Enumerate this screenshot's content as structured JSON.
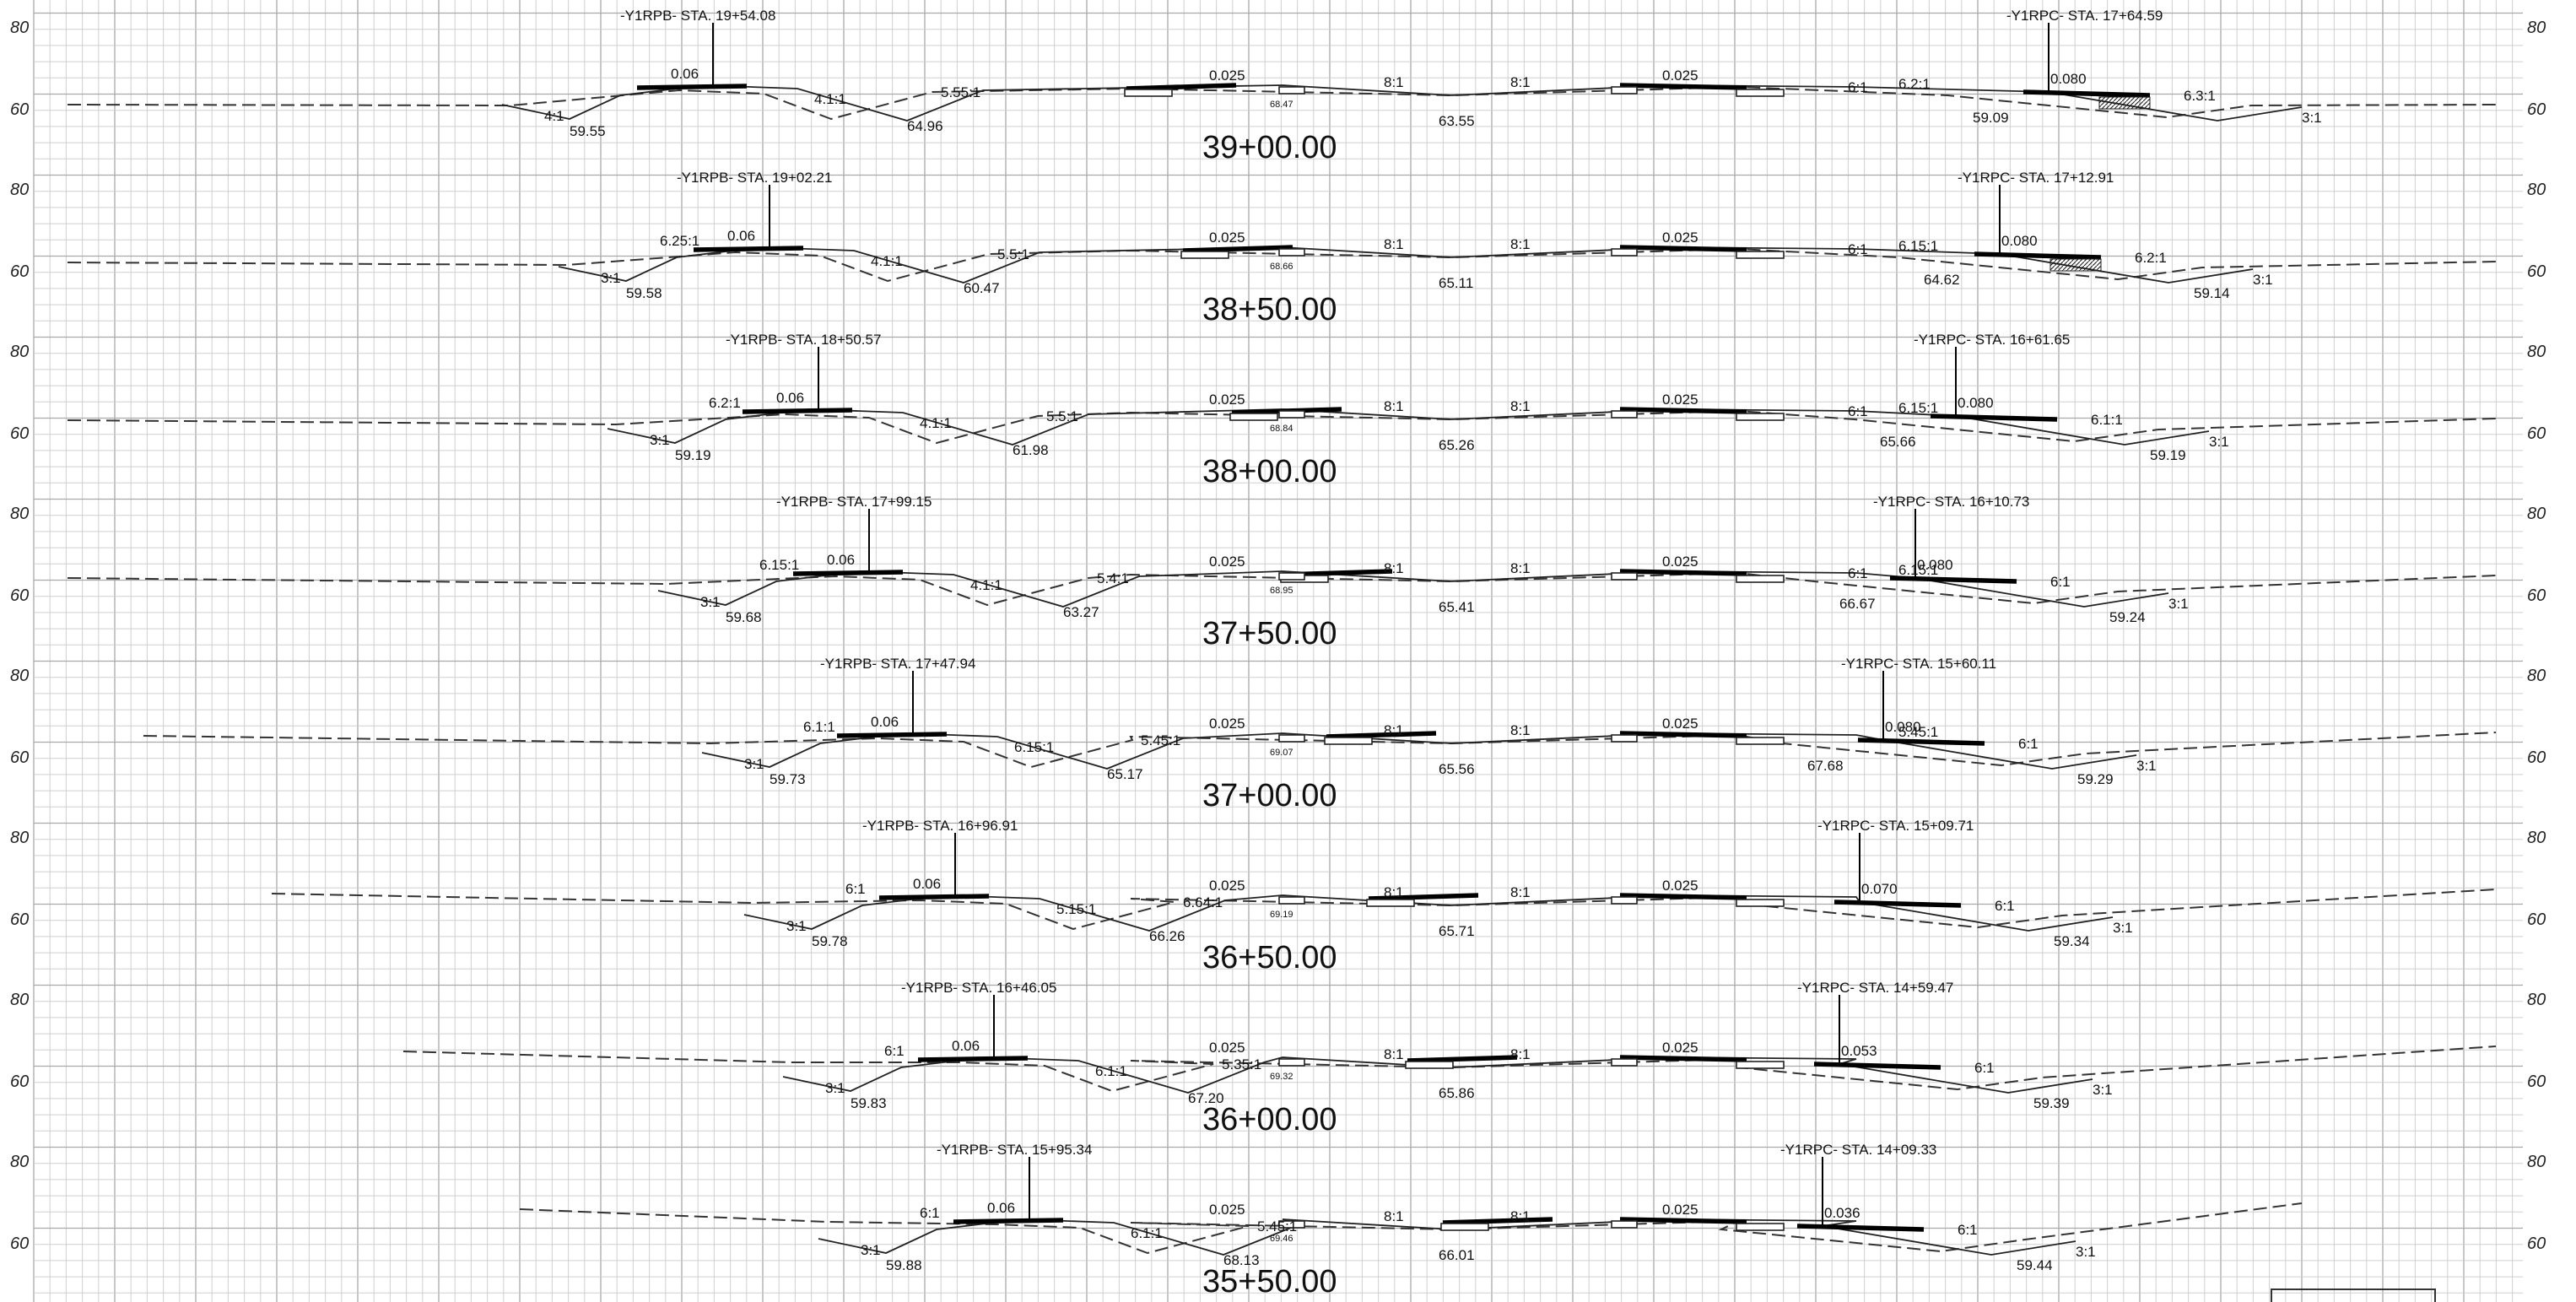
{
  "axis": {
    "upper": "80",
    "lower": "60"
  },
  "sections": [
    {
      "station": "39+00.00",
      "left_tie": "-Y1RPB- STA. 19+54.08",
      "right_tie": "-Y1RPC- STA. 17+64.59",
      "left_slope": "0.06",
      "center_slope": "0.025",
      "center_slope_right": "0.025",
      "right_slope": "0.080",
      "center_elev": "68.47",
      "elev_lo1": "59.55",
      "elev_lo2": "64.96",
      "elev_lo3": "63.55",
      "elev_lo4": "59.09",
      "r_outer": "4:1",
      "r_ditch_l": "4.1:1",
      "r_fill_l": "5.55:1",
      "r_c1": "8:1",
      "r_c2": "8:1",
      "r_fill_r": "6:1",
      "r_fill_r2": "6.2:1",
      "r_cut_r": "6.3:1",
      "r_back_r": "3:1"
    },
    {
      "station": "38+50.00",
      "left_tie": "-Y1RPB- STA. 19+02.21",
      "right_tie": "-Y1RPC- STA. 17+12.91",
      "left_slope": "0.06",
      "center_slope": "0.025",
      "center_slope_right": "0.025",
      "right_slope": "0.080",
      "center_elev": "68.66",
      "elev_lo1": "59.58",
      "elev_lo2": "60.47",
      "elev_lo3": "65.11",
      "elev_lo4": "64.62",
      "elev_lo5": "59.14",
      "r_outer": "3:1",
      "r_cut_l": "6.25:1",
      "r_ditch_l": "4.1:1",
      "r_fill_l": "5.5:1",
      "r_c1": "8:1",
      "r_c2": "8:1",
      "r_fill_r": "6:1",
      "r_fill_r2": "6.15:1",
      "r_cut_r": "6.2:1",
      "r_back_r": "3:1"
    },
    {
      "station": "38+00.00",
      "left_tie": "-Y1RPB- STA. 18+50.57",
      "right_tie": "-Y1RPC- STA. 16+61.65",
      "left_slope": "0.06",
      "center_slope": "0.025",
      "center_slope_right": "0.025",
      "right_slope": "0.080",
      "center_elev": "68.84",
      "elev_lo1": "59.19",
      "elev_lo2": "61.98",
      "elev_lo3": "65.26",
      "elev_lo4": "65.66",
      "elev_lo5": "59.19",
      "r_outer": "3:1",
      "r_cut_l": "6.2:1",
      "r_ditch_l": "4.1:1",
      "r_fill_l": "5.5:1",
      "r_c1": "8:1",
      "r_c2": "8:1",
      "r_fill_r": "6:1",
      "r_fill_r2": "6.15:1",
      "r_cut_r": "6.1:1",
      "r_back_r": "3:1"
    },
    {
      "station": "37+50.00",
      "left_tie": "-Y1RPB- STA. 17+99.15",
      "right_tie": "-Y1RPC- STA. 16+10.73",
      "left_slope": "0.06",
      "center_slope": "0.025",
      "center_slope_right": "0.025",
      "right_slope": "0.080",
      "center_elev": "68.95",
      "elev_lo1": "59.68",
      "elev_lo2": "63.27",
      "elev_lo3": "65.41",
      "elev_lo4": "66.67",
      "elev_lo5": "59.24",
      "r_outer": "3:1",
      "r_cut_l": "6.15:1",
      "r_ditch_l": "4.1:1",
      "r_fill_l": "5.4:1",
      "r_c1": "8:1",
      "r_c2": "8:1",
      "r_fill_r": "6:1",
      "r_fill_r2": "6.15:1",
      "r_cut_r": "6:1",
      "r_back_r": "3:1"
    },
    {
      "station": "37+00.00",
      "left_tie": "-Y1RPB- STA. 17+47.94",
      "right_tie": "-Y1RPC- STA. 15+60.11",
      "left_slope": "0.06",
      "center_slope": "0.025",
      "center_slope_right": "0.025",
      "right_slope": "0.080",
      "center_elev": "69.07",
      "elev_lo1": "59.73",
      "elev_lo2": "65.17",
      "elev_lo3": "65.56",
      "elev_lo4": "67.68",
      "elev_lo5": "59.29",
      "r_outer": "3:1",
      "r_cut_l": "6.1:1",
      "r_ditch_l": "6.15:1",
      "r_fill_l": "5.45:1",
      "r_c1": "8:1",
      "r_c2": "8:1",
      "r_fill_r2": "5.45:1",
      "r_cut_r": "6:1",
      "r_back_r": "3:1"
    },
    {
      "station": "36+50.00",
      "left_tie": "-Y1RPB- STA. 16+96.91",
      "right_tie": "-Y1RPC- STA. 15+09.71",
      "left_slope": "0.06",
      "center_slope": "0.025",
      "center_slope_right": "0.025",
      "right_slope": "0.070",
      "center_elev": "69.19",
      "elev_lo1": "59.78",
      "elev_lo2": "66.26",
      "elev_lo3": "65.71",
      "elev_lo5": "59.34",
      "r_outer": "3:1",
      "r_cut_l": "6:1",
      "r_ditch_l": "5.15:1",
      "r_fill_l": "6.64:1",
      "r_c1": "8:1",
      "r_c2": "8:1",
      "r_cut_r": "6:1",
      "r_back_r": "3:1"
    },
    {
      "station": "36+00.00",
      "left_tie": "-Y1RPB- STA. 16+46.05",
      "right_tie": "-Y1RPC- STA. 14+59.47",
      "left_slope": "0.06",
      "center_slope": "0.025",
      "center_slope_right": "0.025",
      "right_slope": "0.053",
      "center_elev": "69.32",
      "elev_lo1": "59.83",
      "elev_lo2": "67.20",
      "elev_lo3": "65.86",
      "elev_lo5": "59.39",
      "r_outer": "3:1",
      "r_cut_l": "6:1",
      "r_ditch_l": "6.1:1",
      "r_fill_l": "5.35:1",
      "r_c1": "8:1",
      "r_c2": "8:1",
      "r_cut_r": "6:1",
      "r_back_r": "3:1"
    },
    {
      "station": "35+50.00",
      "left_tie": "-Y1RPB- STA. 15+95.34",
      "right_tie": "-Y1RPC- STA. 14+09.33",
      "left_slope": "0.06",
      "center_slope": "0.025",
      "center_slope_right": "0.025",
      "right_slope": "0.036",
      "center_elev": "69.46",
      "elev_lo1": "59.88",
      "elev_lo2": "68.13",
      "elev_lo3": "66.01",
      "elev_lo5": "59.44",
      "r_outer": "3:1",
      "r_cut_l": "6:1",
      "r_ditch_l": "6.1:1",
      "r_fill_l": "5.45:1",
      "r_c1": "8:1",
      "r_c2": "8:1",
      "r_cut_r": "6:1",
      "r_back_r": "3:1"
    }
  ]
}
